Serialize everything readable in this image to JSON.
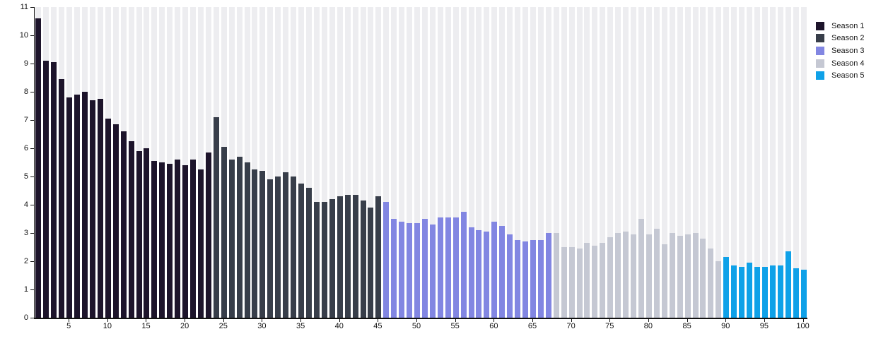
{
  "chart_data": {
    "type": "bar",
    "title": "",
    "xlabel": "",
    "ylabel": "",
    "ylim": [
      0,
      11
    ],
    "xlim": [
      1,
      100
    ],
    "y_ticks": [
      0,
      1,
      2,
      3,
      4,
      5,
      6,
      7,
      8,
      9,
      10,
      11
    ],
    "x_ticks": [
      5,
      10,
      15,
      20,
      25,
      30,
      35,
      40,
      45,
      50,
      55,
      60,
      65,
      70,
      75,
      80,
      85,
      90,
      95,
      100
    ],
    "grid": "striped-column-background",
    "background_stripe_color": "#ededf0",
    "axis_color": "#111111",
    "legend_position": "top-right",
    "categories_note": "x = episode number 1-100, bars grouped consecutively by season",
    "series": [
      {
        "name": "Season 1",
        "color": "#1d142b",
        "episode_range": [
          1,
          23
        ],
        "values": [
          10.6,
          9.1,
          9.05,
          8.45,
          7.8,
          7.9,
          8.0,
          7.7,
          7.75,
          7.05,
          6.85,
          6.6,
          6.25,
          5.9,
          6.0,
          5.55,
          5.5,
          5.45,
          5.6,
          5.4,
          5.6,
          5.25,
          5.85
        ]
      },
      {
        "name": "Season 2",
        "color": "#383e4a",
        "episode_range": [
          24,
          45
        ],
        "values": [
          7.1,
          6.05,
          5.6,
          5.7,
          5.5,
          5.25,
          5.2,
          4.9,
          5.0,
          5.15,
          5.0,
          4.75,
          4.6,
          4.1,
          4.1,
          4.2,
          4.3,
          4.35,
          4.35,
          4.15,
          3.9,
          4.3
        ]
      },
      {
        "name": "Season 3",
        "color": "#8286e2",
        "episode_range": [
          46,
          67
        ],
        "values": [
          4.1,
          3.5,
          3.4,
          3.35,
          3.35,
          3.5,
          3.3,
          3.55,
          3.55,
          3.55,
          3.75,
          3.2,
          3.1,
          3.05,
          3.4,
          3.25,
          2.95,
          2.75,
          2.7,
          2.75,
          2.75,
          3.0
        ]
      },
      {
        "name": "Season 4",
        "color": "#c5c8d3",
        "episode_range": [
          68,
          89
        ],
        "values": [
          3.0,
          2.5,
          2.5,
          2.45,
          2.65,
          2.55,
          2.65,
          2.85,
          3.0,
          3.05,
          2.95,
          3.5,
          2.95,
          3.15,
          2.6,
          3.0,
          2.9,
          2.95,
          3.0,
          2.8,
          2.45,
          2.0
        ]
      },
      {
        "name": "Season 5",
        "color": "#0fa1e8",
        "episode_range": [
          90,
          100
        ],
        "values": [
          2.15,
          1.85,
          1.8,
          1.95,
          1.8,
          1.8,
          1.85,
          1.85,
          2.35,
          1.75,
          1.7
        ]
      }
    ]
  }
}
